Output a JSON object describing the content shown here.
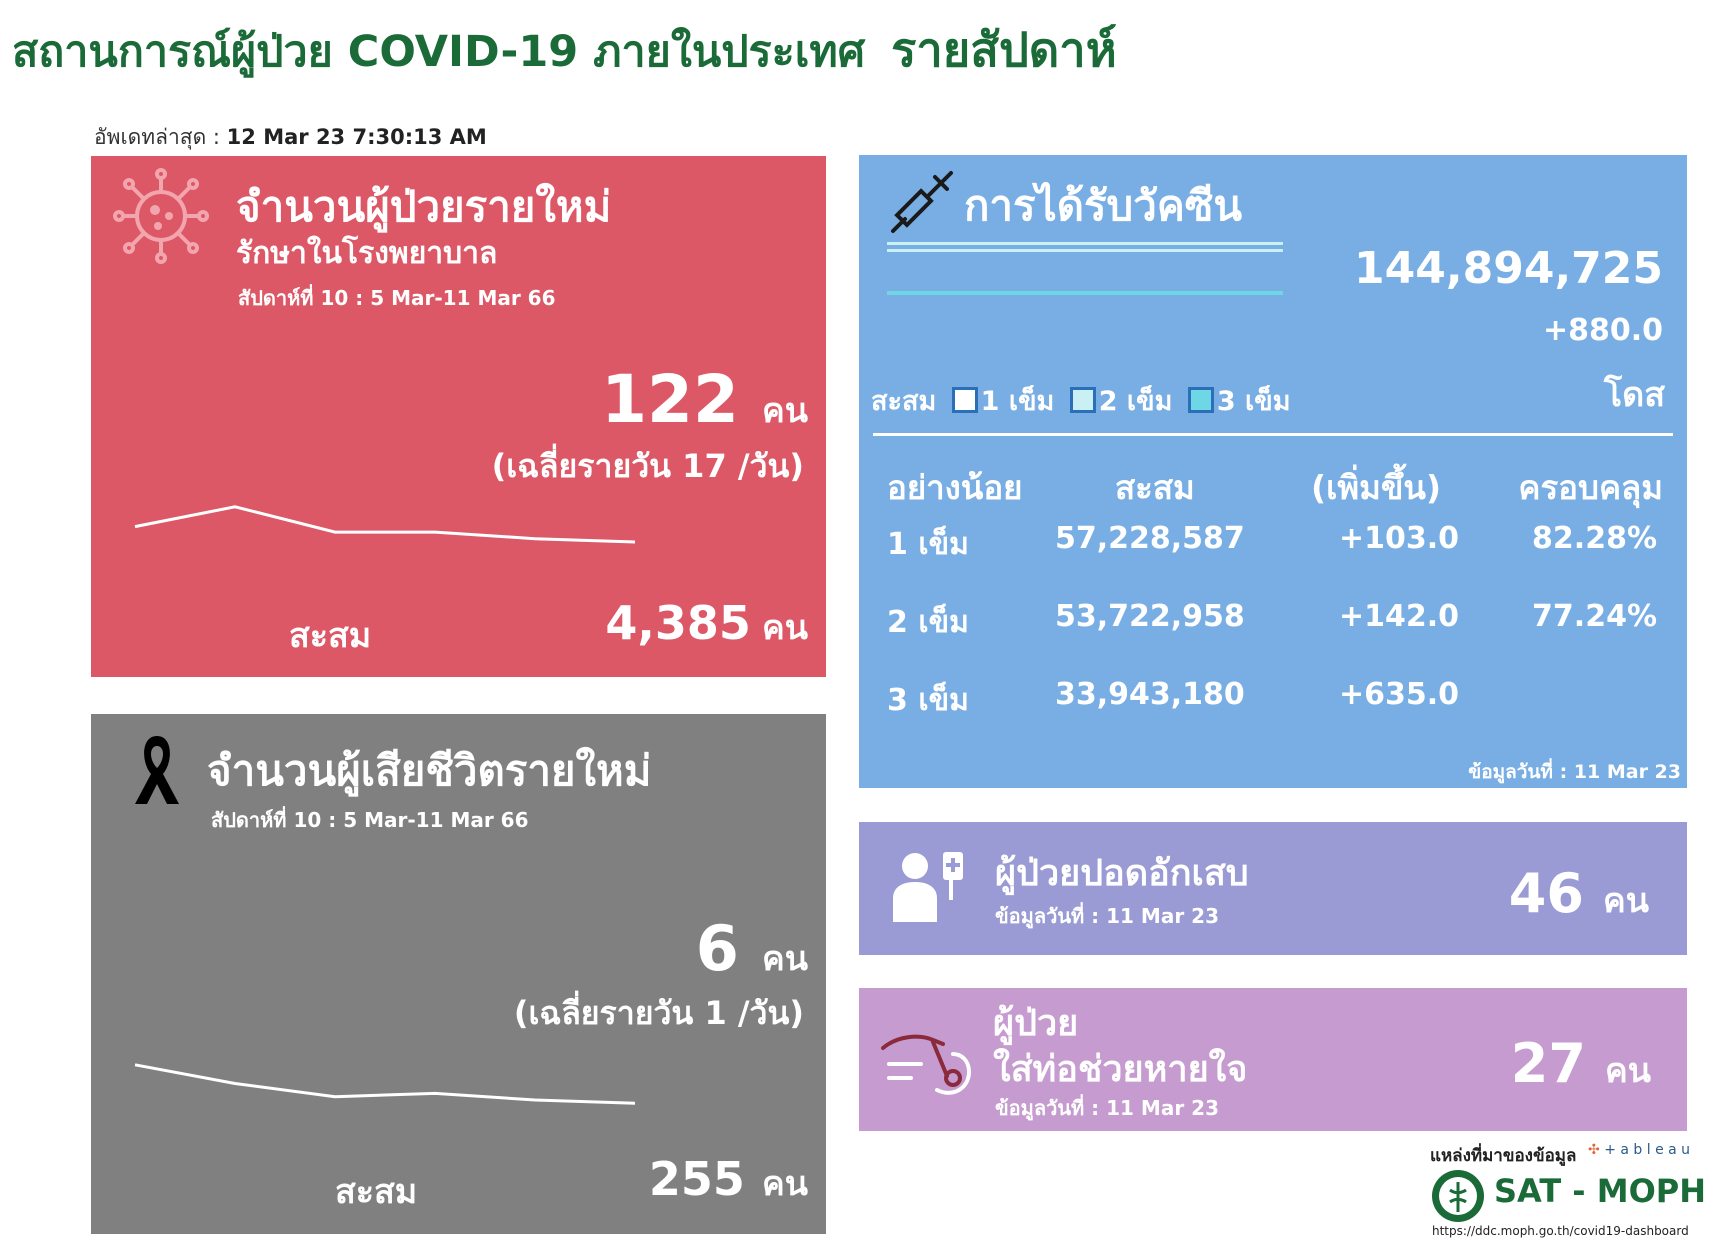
{
  "page": {
    "title": "สถานการณ์ผู้ป่วย COVID-19 ภายในประเทศ",
    "title_weekly": "รายสัปดาห์",
    "updated_label": "อัพเดทล่าสุด :",
    "updated_value": "12 Mar 23 7:30:13 AM"
  },
  "colors": {
    "title_green": "#1b6b39",
    "cases_red": "#dc5866",
    "deaths_gray": "#808080",
    "vaccine_blue": "#78aee4",
    "pneumonia_purple": "#9a9bd4",
    "ventilator_purple": "#c59bd0"
  },
  "cases": {
    "icon": "virus-icon",
    "title": "จำนวนผู้ป่วยรายใหม่",
    "subtitle": "รักษาในโรงพยาบาล",
    "week": "สัปดาห์ที่ 10 : 5 Mar-11 Mar 66",
    "count": "122",
    "unit": "คน",
    "avg": "(เฉลี่ยรายวัน 17 /วัน)",
    "cum_label": "สะสม",
    "cum_value": "4,385",
    "cum_unit": "คน",
    "trend": [
      54,
      72,
      49,
      49,
      43,
      40
    ]
  },
  "deaths": {
    "icon": "black-ribbon-icon",
    "title": "จำนวนผู้เสียชีวิตรายใหม่",
    "week": "สัปดาห์ที่  10 : 5 Mar-11 Mar 66",
    "count": "6",
    "unit": "คน",
    "avg": "(เฉลี่ยรายวัน 1 /วัน)",
    "cum_label": "สะสม",
    "cum_value": "255",
    "cum_unit": "คน",
    "trend": [
      72,
      55,
      43,
      46,
      40,
      37
    ]
  },
  "vaccine": {
    "icon": "syringe-icon",
    "title": "การได้รับวัคซีน",
    "total": "144,894,725",
    "increase": "+880.0",
    "unit": "โดส",
    "legend_label": "สะสม",
    "legend": [
      {
        "label": "1 เข็ม",
        "color": "#ffffff"
      },
      {
        "label": "2 เข็ม",
        "color": "#c9f0f2"
      },
      {
        "label": "3 เข็ม",
        "color": "#6fd6e6"
      }
    ],
    "headers": [
      "อย่างน้อย",
      "สะสม",
      "(เพิ่มขึ้น)",
      "ครอบคลุม"
    ],
    "rows": [
      {
        "dose": "1 เข็ม",
        "cum": "57,228,587",
        "inc": "+103.0",
        "cov": "82.28%"
      },
      {
        "dose": "2 เข็ม",
        "cum": "53,722,958",
        "inc": "+142.0",
        "cov": "77.24%"
      },
      {
        "dose": "3 เข็ม",
        "cum": "33,943,180",
        "inc": "+635.0",
        "cov": ""
      }
    ],
    "date": "ข้อมูลวันที่ : 11 Mar 23"
  },
  "pneumonia": {
    "icon": "patient-iv-icon",
    "title": "ผู้ป่วยปอดอักเสบ",
    "date": "ข้อมูลวันที่ : 11 Mar 23",
    "count": "46",
    "unit": "คน"
  },
  "ventilator": {
    "icon": "ventilator-tube-icon",
    "title_line1": "ผู้ป่วย",
    "title_line2": "ใส่ท่อช่วยหายใจ",
    "date": "ข้อมูลวันที่ : 11 Mar 23",
    "count": "27",
    "unit": "คน"
  },
  "source": {
    "label": "แหล่งที่มาของข้อมูล",
    "tableau": "+ a b l e a u",
    "org": "SAT - MOPH",
    "url": "https://ddc.moph.go.th/covid19-dashboard",
    "seal_icon": "moph-seal-icon"
  }
}
